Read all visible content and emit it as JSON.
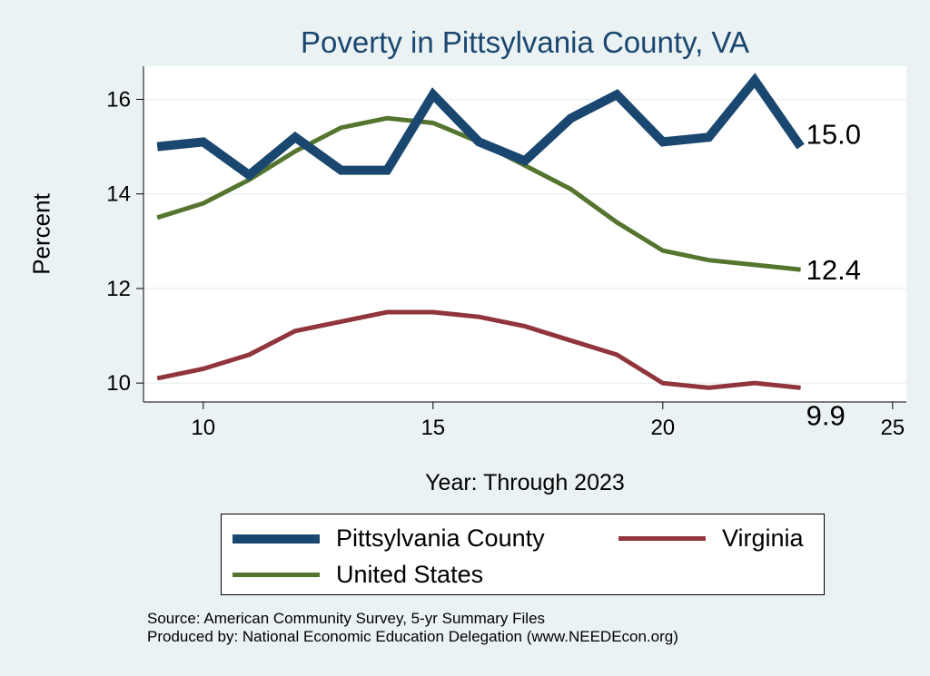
{
  "chart_data": {
    "type": "line",
    "title": "Poverty in Pittsylvania County, VA",
    "xlabel": "Year: Through 2023",
    "ylabel": "Percent",
    "xlim": [
      8.7,
      25.3
    ],
    "ylim": [
      9.6,
      16.7
    ],
    "xticks": [
      10,
      15,
      20,
      25
    ],
    "yticks": [
      10,
      12,
      14,
      16
    ],
    "grid": true,
    "legend_position": "bottom",
    "x": [
      9,
      10,
      11,
      12,
      13,
      14,
      15,
      16,
      17,
      18,
      19,
      20,
      21,
      22,
      23
    ],
    "series": [
      {
        "name": "Pittsylvania County",
        "color": "#1a476f",
        "width": "thick",
        "values": [
          15.0,
          15.1,
          14.4,
          15.2,
          14.5,
          14.5,
          16.1,
          15.1,
          14.7,
          15.6,
          16.1,
          15.1,
          15.2,
          16.4,
          15.0
        ],
        "end_label": "15.0"
      },
      {
        "name": "United States",
        "color": "#55752f",
        "width": "medium",
        "values": [
          13.5,
          13.8,
          14.3,
          14.9,
          15.4,
          15.6,
          15.5,
          15.1,
          14.6,
          14.1,
          13.4,
          12.8,
          12.6,
          12.5,
          12.4
        ],
        "end_label": "12.4"
      },
      {
        "name": "Virginia",
        "color": "#90353b",
        "width": "medium",
        "values": [
          10.1,
          10.3,
          10.6,
          11.1,
          11.3,
          11.5,
          11.5,
          11.4,
          11.2,
          10.9,
          10.6,
          10.0,
          9.9,
          10.0,
          9.9
        ],
        "end_label": "9.9"
      }
    ]
  },
  "legend": {
    "items": [
      "Pittsylvania County",
      "Virginia",
      "United States"
    ]
  },
  "footer": {
    "source": "Source: American Community Survey, 5-yr Summary Files",
    "produced": "Produced by: National Economic Education Delegation (www.NEEDEcon.org)"
  }
}
